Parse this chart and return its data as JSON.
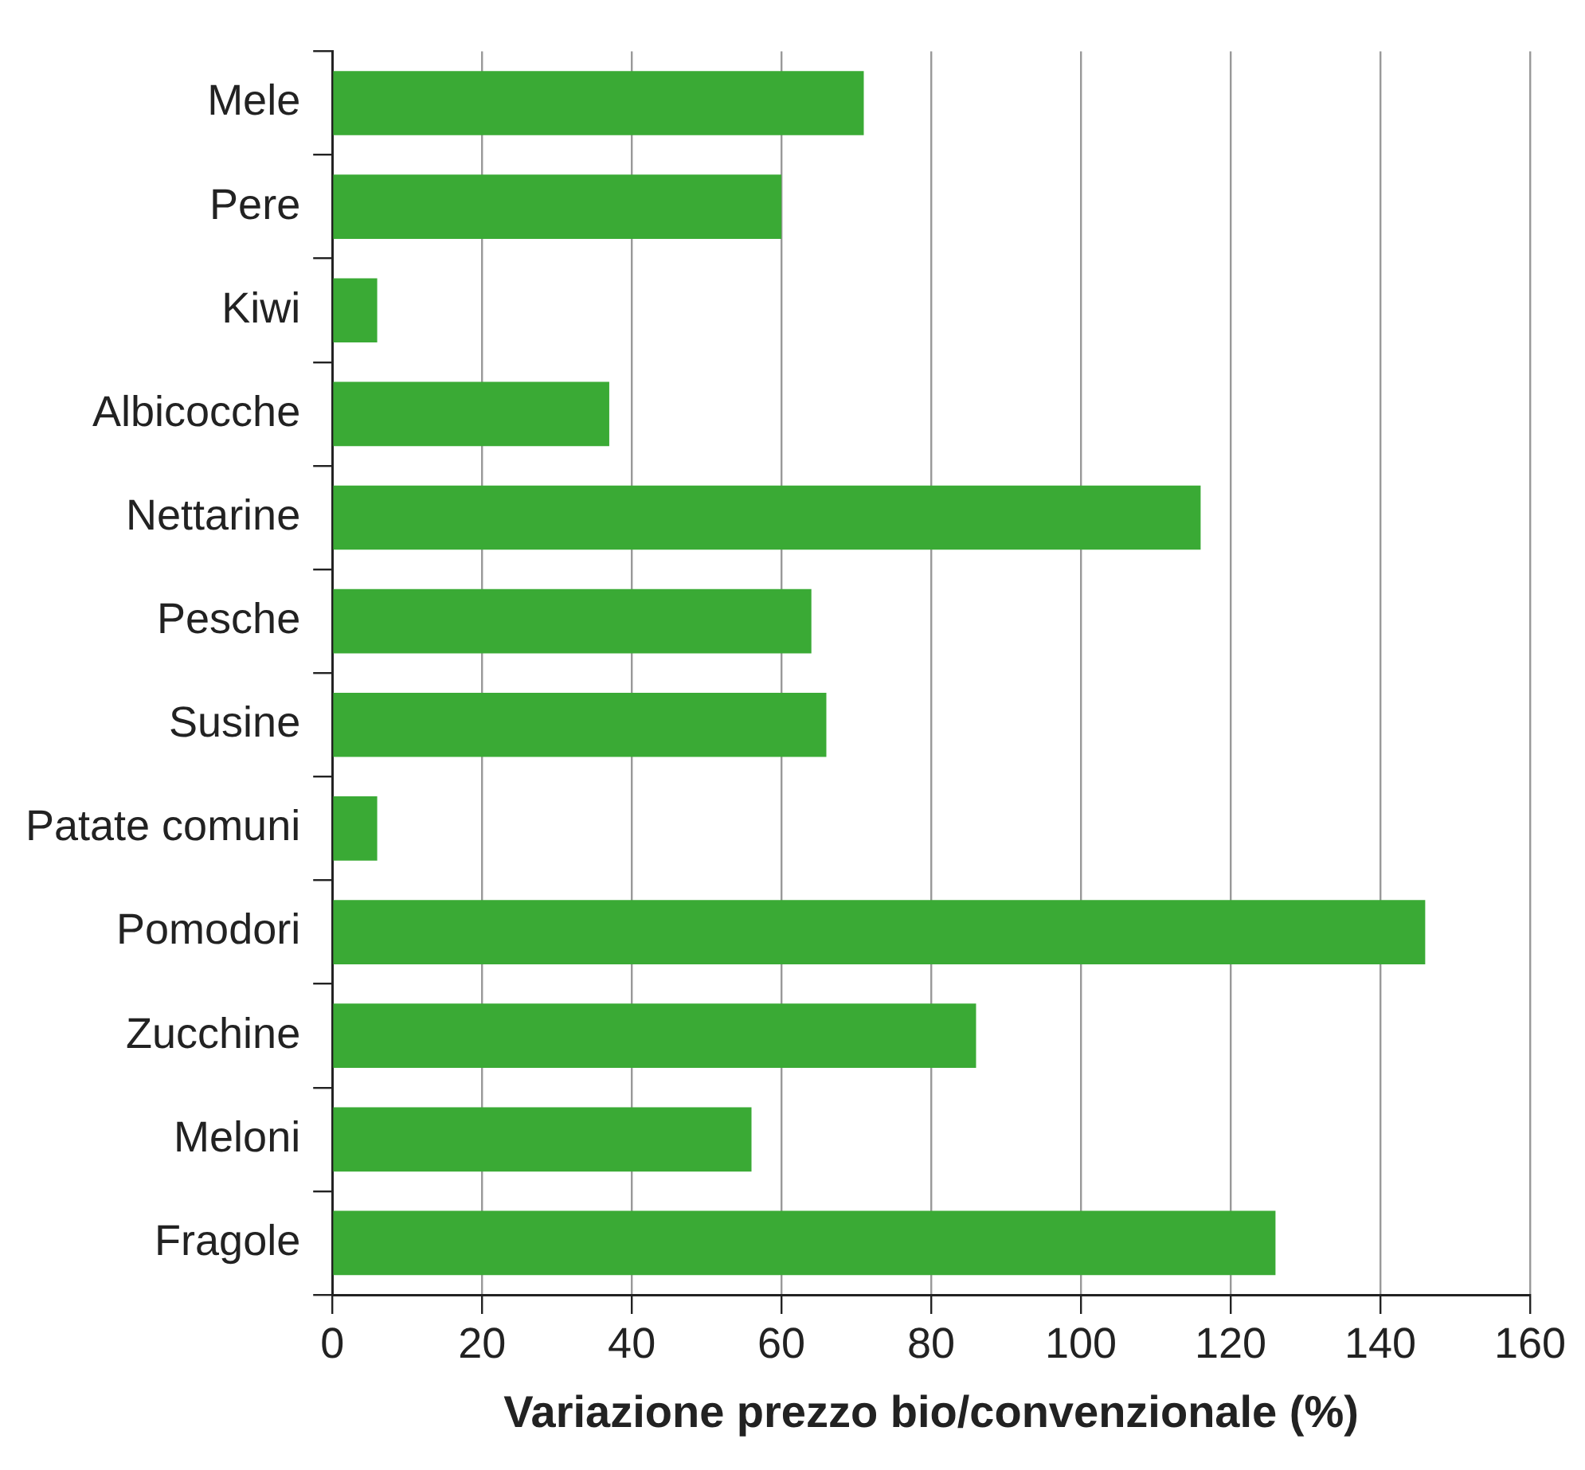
{
  "chart_data": {
    "type": "bar",
    "orientation": "horizontal",
    "xlabel": "Variazione prezzo bio/convenzionale (%)",
    "categories": [
      "Mele",
      "Pere",
      "Kiwi",
      "Albicocche",
      "Nettarine",
      "Pesche",
      "Susine",
      "Patate comuni",
      "Pomodori",
      "Zucchine",
      "Meloni",
      "Fragole"
    ],
    "values": [
      71,
      60,
      6,
      37,
      116,
      64,
      66,
      6,
      146,
      86,
      56,
      126
    ],
    "color": "#3aaa35",
    "xlim": [
      0,
      160
    ],
    "xticks": [
      0,
      20,
      40,
      60,
      80,
      100,
      120,
      140,
      160
    ],
    "grid": "x",
    "legend": false
  }
}
